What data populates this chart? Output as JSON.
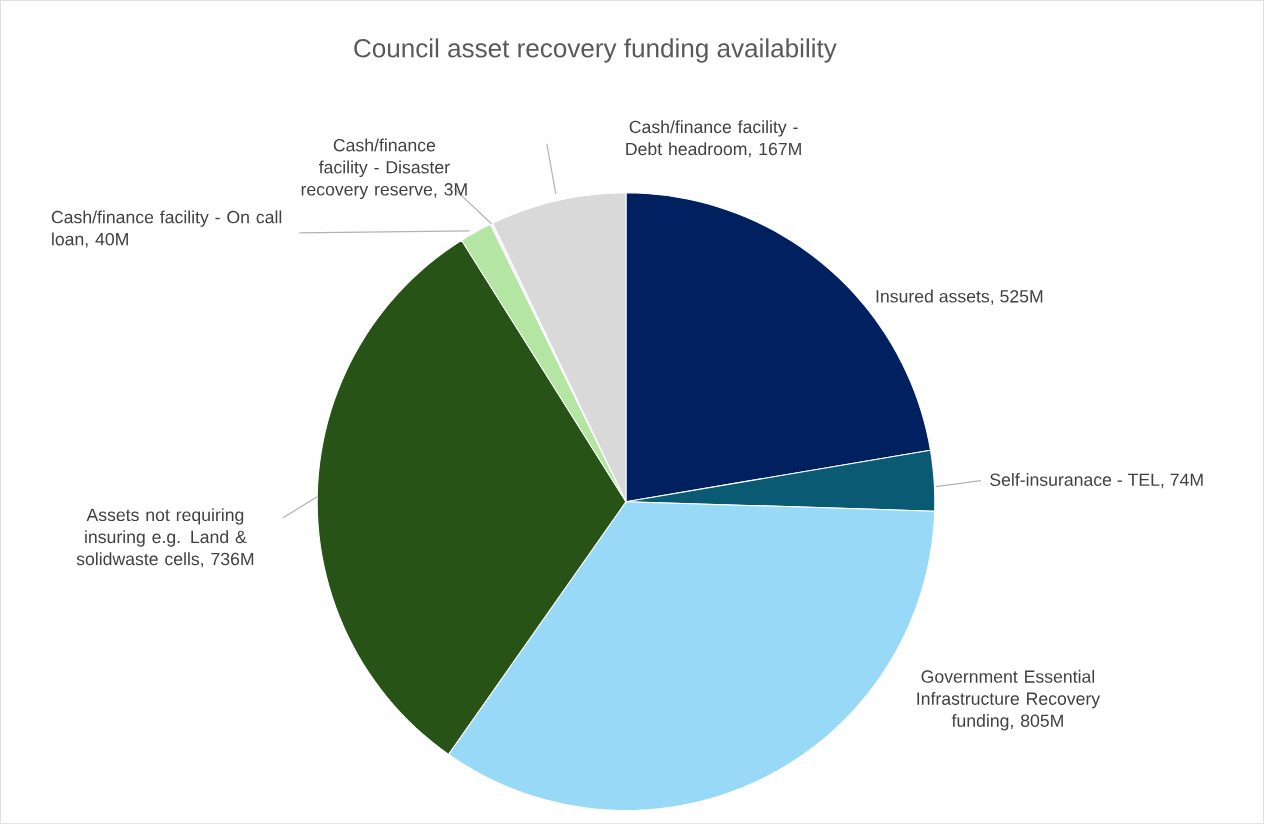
{
  "chart_data": {
    "type": "pie",
    "title": "Council asset recovery funding availability",
    "categories": [
      "Insured assets, 525M",
      "Self-insuranace - TEL, 74M",
      "Government Essential Infrastructure Recovery funding, 805M",
      "Assets not requiring insuring e.g. Land & solidwaste cells, 736M",
      "Cash/finance facility - On call loan, 40M",
      "Cash/finance facility - Disaster recovery reserve, 3M",
      "Cash/finance facility - Debt headroom, 167M"
    ],
    "values": [
      525,
      74,
      805,
      736,
      40,
      3,
      167
    ],
    "colors": [
      "#002060",
      "#0b5a74",
      "#97d9f7",
      "#275317",
      "#b4e5a2",
      "#f2f2f2",
      "#d9d9d9"
    ],
    "legend": false
  }
}
